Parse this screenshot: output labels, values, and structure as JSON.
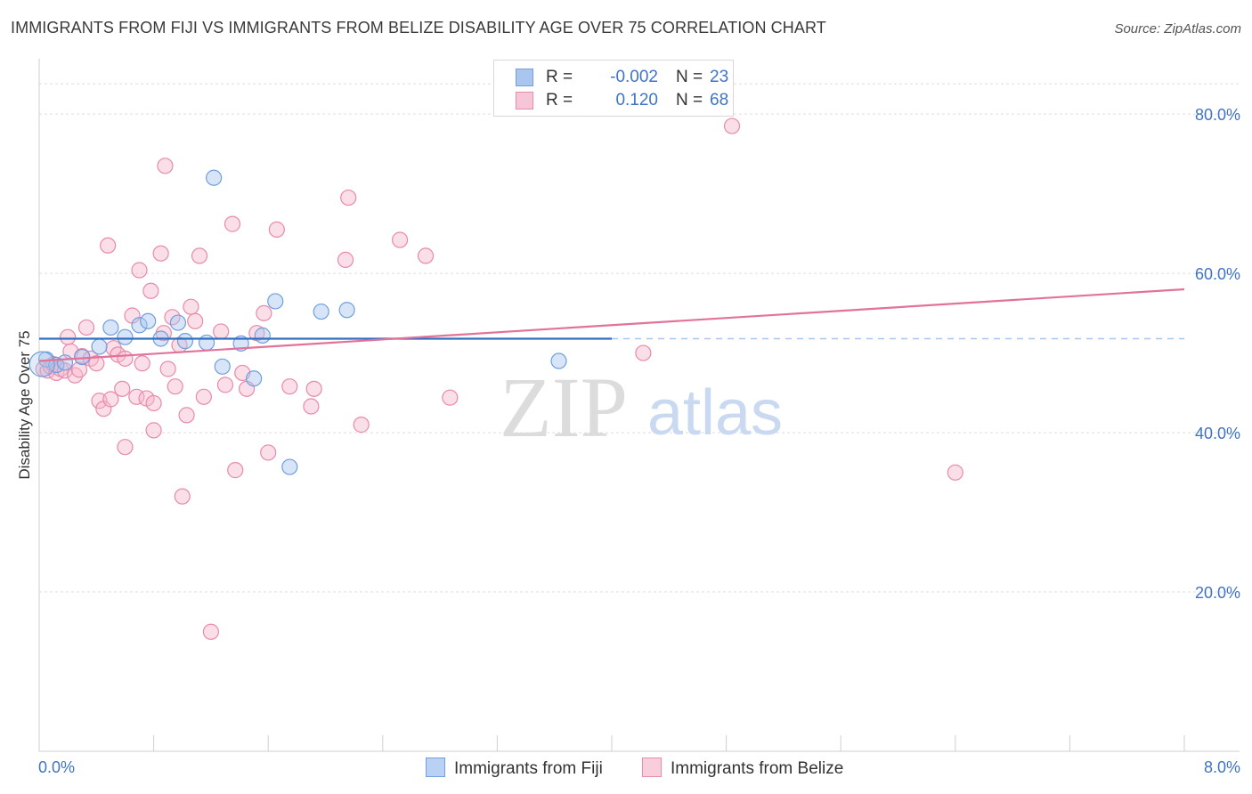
{
  "title": "IMMIGRANTS FROM FIJI VS IMMIGRANTS FROM BELIZE DISABILITY AGE OVER 75 CORRELATION CHART",
  "source": "Source: ZipAtlas.com",
  "watermark": {
    "zip": "ZIP",
    "atlas": "atlas"
  },
  "legend": {
    "fiji": {
      "r_label": "R =",
      "r_value": "-0.002",
      "n_label": "N =",
      "n_value": "23"
    },
    "belize": {
      "r_label": "R =",
      "r_value": "0.120",
      "n_label": "N =",
      "n_value": "68"
    }
  },
  "bottom_legend": {
    "fiji": "Immigrants from Fiji",
    "belize": "Immigrants from Belize"
  },
  "colors": {
    "fiji_fill": "#a9c6ef",
    "fiji_stroke": "#6f9fdc",
    "fiji_line": "#2f6fc6",
    "belize_fill": "#f6b8cc",
    "belize_stroke": "#e88aa9",
    "belize_line": "#e2729a",
    "tick_text": "#3f73c8",
    "grid": "#dddddd"
  },
  "chart_data": {
    "type": "scatter",
    "title": "IMMIGRANTS FROM FIJI VS IMMIGRANTS FROM BELIZE DISABILITY AGE OVER 75 CORRELATION CHART",
    "xlabel": "",
    "ylabel": "Disability Age Over 75",
    "xlim": [
      0.0,
      8.0
    ],
    "ylim": [
      0.0,
      85.0
    ],
    "x_tick_labels": [
      "0.0%",
      "8.0%"
    ],
    "y_ticks": [
      20,
      40,
      60,
      80
    ],
    "y_tick_labels": [
      "20.0%",
      "40.0%",
      "60.0%",
      "80.0%"
    ],
    "series": [
      {
        "name": "Immigrants from Fiji",
        "color": "fiji",
        "trend": {
          "x0": 0.0,
          "y0": 51.8,
          "x1": 4.0,
          "y1": 51.8,
          "dashed_to": 8.0
        },
        "points": [
          [
            0.05,
            49.2
          ],
          [
            0.12,
            48.5
          ],
          [
            0.18,
            48.8
          ],
          [
            0.3,
            49.5
          ],
          [
            0.42,
            50.8
          ],
          [
            0.5,
            53.2
          ],
          [
            0.6,
            52.0
          ],
          [
            0.7,
            53.5
          ],
          [
            0.76,
            54.0
          ],
          [
            0.85,
            51.8
          ],
          [
            0.97,
            53.8
          ],
          [
            1.02,
            51.5
          ],
          [
            1.17,
            51.3
          ],
          [
            1.22,
            72.0
          ],
          [
            1.28,
            48.3
          ],
          [
            1.41,
            51.2
          ],
          [
            1.5,
            46.8
          ],
          [
            1.56,
            52.2
          ],
          [
            1.65,
            56.5
          ],
          [
            1.75,
            35.7
          ],
          [
            1.97,
            55.2
          ],
          [
            2.15,
            55.4
          ],
          [
            3.63,
            49.0
          ]
        ]
      },
      {
        "name": "Immigrants from Belize",
        "color": "belize",
        "trend": {
          "x0": 0.0,
          "y0": 49.0,
          "x1": 8.0,
          "y1": 58.0
        },
        "points": [
          [
            0.03,
            48.0
          ],
          [
            0.06,
            47.8
          ],
          [
            0.08,
            48.3
          ],
          [
            0.1,
            48.6
          ],
          [
            0.12,
            47.5
          ],
          [
            0.15,
            48.0
          ],
          [
            0.18,
            47.8
          ],
          [
            0.2,
            52.0
          ],
          [
            0.22,
            50.2
          ],
          [
            0.25,
            47.2
          ],
          [
            0.28,
            47.9
          ],
          [
            0.3,
            49.6
          ],
          [
            0.33,
            53.2
          ],
          [
            0.36,
            49.3
          ],
          [
            0.4,
            48.7
          ],
          [
            0.42,
            44.0
          ],
          [
            0.45,
            43.0
          ],
          [
            0.48,
            63.5
          ],
          [
            0.5,
            44.2
          ],
          [
            0.52,
            50.6
          ],
          [
            0.55,
            49.8
          ],
          [
            0.58,
            45.5
          ],
          [
            0.6,
            49.3
          ],
          [
            0.6,
            38.2
          ],
          [
            0.65,
            54.7
          ],
          [
            0.68,
            44.5
          ],
          [
            0.7,
            60.4
          ],
          [
            0.72,
            48.7
          ],
          [
            0.75,
            44.3
          ],
          [
            0.78,
            57.8
          ],
          [
            0.8,
            43.7
          ],
          [
            0.8,
            40.3
          ],
          [
            0.85,
            62.5
          ],
          [
            0.87,
            52.5
          ],
          [
            0.88,
            73.5
          ],
          [
            0.9,
            48.0
          ],
          [
            0.93,
            54.5
          ],
          [
            0.95,
            45.8
          ],
          [
            0.98,
            51.0
          ],
          [
            1.0,
            32.0
          ],
          [
            1.03,
            42.2
          ],
          [
            1.06,
            55.8
          ],
          [
            1.09,
            54.0
          ],
          [
            1.12,
            62.2
          ],
          [
            1.15,
            44.5
          ],
          [
            1.2,
            15.0
          ],
          [
            1.27,
            52.7
          ],
          [
            1.3,
            46.0
          ],
          [
            1.35,
            66.2
          ],
          [
            1.37,
            35.3
          ],
          [
            1.42,
            47.5
          ],
          [
            1.45,
            45.5
          ],
          [
            1.52,
            52.5
          ],
          [
            1.57,
            55.0
          ],
          [
            1.6,
            37.5
          ],
          [
            1.66,
            65.5
          ],
          [
            1.75,
            45.8
          ],
          [
            1.9,
            43.3
          ],
          [
            1.92,
            45.5
          ],
          [
            2.14,
            61.7
          ],
          [
            2.16,
            69.5
          ],
          [
            2.25,
            41.0
          ],
          [
            2.52,
            64.2
          ],
          [
            2.7,
            62.2
          ],
          [
            2.87,
            44.4
          ],
          [
            4.22,
            50.0
          ],
          [
            4.84,
            78.5
          ],
          [
            6.4,
            35.0
          ]
        ]
      }
    ]
  }
}
